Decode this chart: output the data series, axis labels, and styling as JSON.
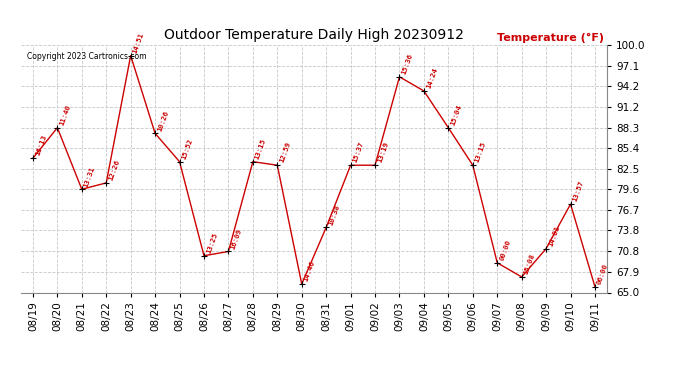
{
  "title": "Outdoor Temperature Daily High 20230912",
  "ylabel": "Temperature (°F)",
  "copyright": "Copyright 2023 Cartronics.com",
  "background_color": "#ffffff",
  "grid_color": "#c8c8c8",
  "line_color": "#cc0000",
  "label_color": "#cc0000",
  "ylabel_color": "#cc0000",
  "dates": [
    "08/19",
    "08/20",
    "08/21",
    "08/22",
    "08/23",
    "08/24",
    "08/25",
    "08/26",
    "08/27",
    "08/28",
    "08/29",
    "08/30",
    "08/31",
    "09/01",
    "09/02",
    "09/03",
    "09/04",
    "09/05",
    "09/06",
    "09/07",
    "09/08",
    "09/09",
    "09/10",
    "09/11"
  ],
  "values": [
    84.0,
    88.3,
    79.6,
    80.5,
    98.5,
    87.5,
    83.5,
    70.2,
    70.8,
    83.5,
    83.0,
    66.2,
    74.2,
    83.0,
    83.0,
    95.5,
    93.5,
    88.3,
    83.0,
    69.2,
    67.2,
    71.2,
    77.5,
    65.8
  ],
  "time_labels": [
    "16:13",
    "11:40",
    "13:31",
    "12:26",
    "14:51",
    "10:26",
    "15:52",
    "13:25",
    "16:09",
    "13:15",
    "12:59",
    "14:46",
    "10:38",
    "15:37",
    "13:19",
    "15:36",
    "14:24",
    "15:04",
    "13:15",
    "00:00",
    "15:08",
    "14:01",
    "13:57",
    "06:00"
  ],
  "ylim": [
    65.0,
    100.0
  ],
  "yticks": [
    65.0,
    67.9,
    70.8,
    73.8,
    76.7,
    79.6,
    82.5,
    85.4,
    88.3,
    91.2,
    94.2,
    97.1,
    100.0
  ],
  "ytick_labels": [
    "65.0",
    "67.9",
    "70.8",
    "73.8",
    "76.7",
    "79.6",
    "82.5",
    "85.4",
    "88.3",
    "91.2",
    "94.2",
    "97.1",
    "100.0"
  ]
}
